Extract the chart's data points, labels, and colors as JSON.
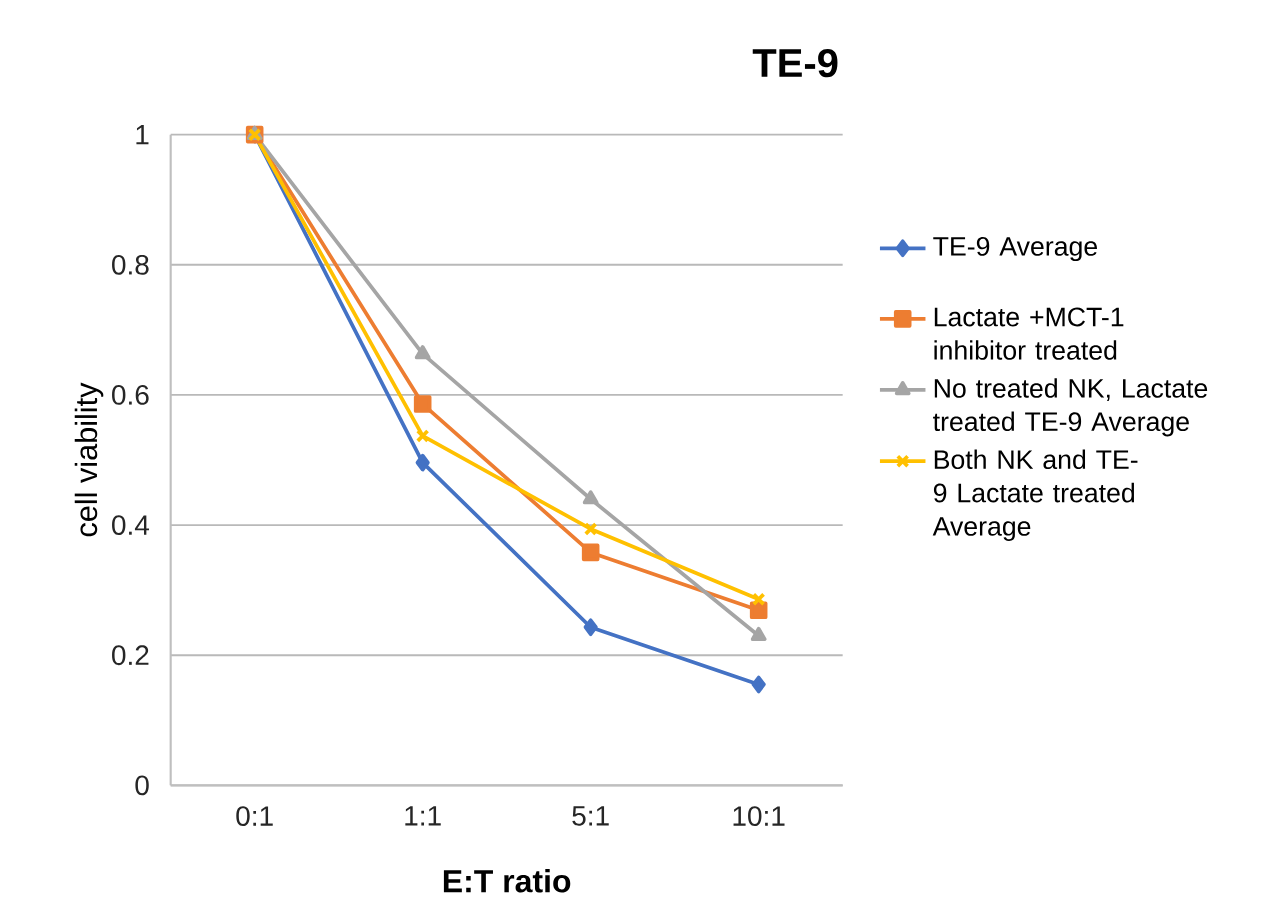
{
  "chart_data": {
    "type": "line",
    "title": "TE-9",
    "xlabel": "E:T ratio",
    "ylabel": "cell viability",
    "categories": [
      "0:1",
      "1:1",
      "5:1",
      "10:1"
    ],
    "series": [
      {
        "name": "TE-9 Average",
        "color": "#4472c4",
        "marker": "diamond",
        "values": [
          1,
          0.496,
          0.243,
          0.155
        ]
      },
      {
        "name": "Lactate +MCT-1 inhibitor treated",
        "color": "#ed7d31",
        "marker": "square",
        "values": [
          1,
          0.586,
          0.358,
          0.269
        ]
      },
      {
        "name": "No treated NK, Lactate treated TE-9 Average",
        "color": "#a5a5a5",
        "marker": "triangle",
        "values": [
          1,
          0.663,
          0.44,
          0.23
        ]
      },
      {
        "name": "Both NK and TE-9 Lactate treated Average",
        "color": "#ffc000",
        "marker": "cross",
        "values": [
          1,
          0.537,
          0.394,
          0.286
        ]
      }
    ],
    "ylim": [
      0,
      1
    ],
    "yticks": [
      0,
      0.2,
      0.4,
      0.6,
      0.8,
      1
    ],
    "grid": "y",
    "legend": "right",
    "line_style": "solid"
  }
}
